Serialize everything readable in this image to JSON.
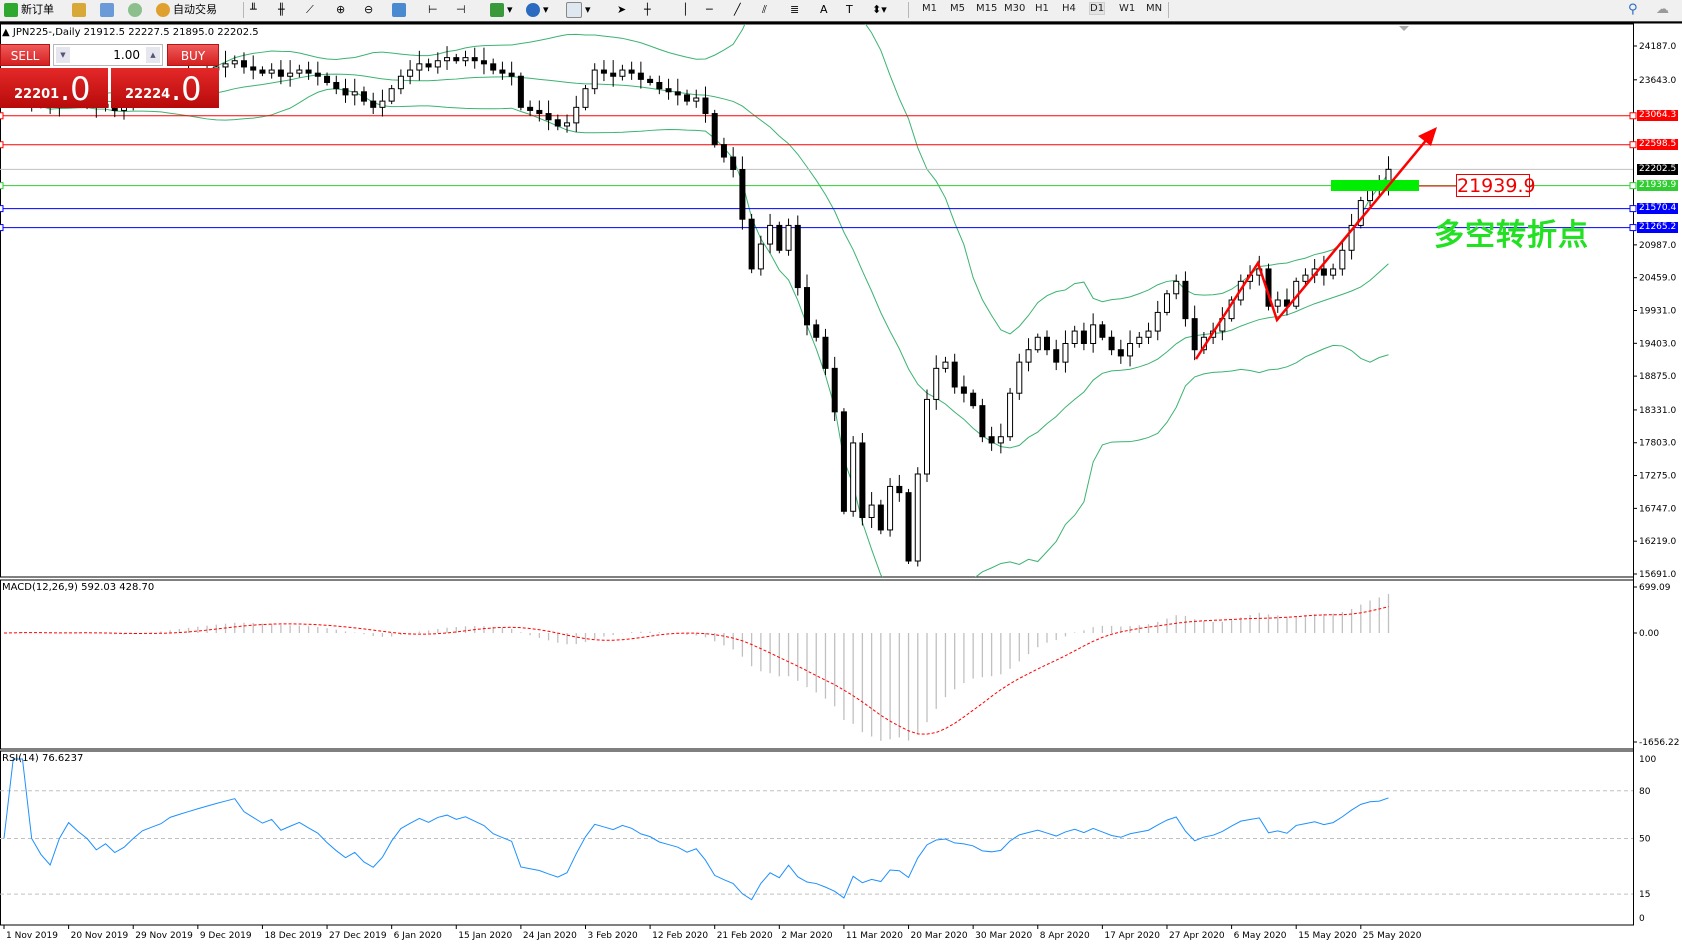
{
  "toolbar": {
    "new_order": "新订单",
    "auto_trading": "自动交易",
    "timeframes": [
      "M1",
      "M5",
      "M15",
      "M30",
      "H1",
      "H4",
      "D1",
      "W1",
      "MN"
    ],
    "active_timeframe": "D1",
    "icons": [
      "new-order-icon",
      "market-watch-icon",
      "navigator-icon",
      "signals-icon",
      "auto-trading-icon",
      "bar-chart-icon",
      "candlestick-icon",
      "line-chart-icon",
      "zoom-in-icon",
      "zoom-out-icon",
      "tile-windows-icon",
      "chart-shift-icon",
      "autoscroll-icon",
      "indicators-icon",
      "periods-icon",
      "templates-icon",
      "cursor-icon",
      "crosshair-icon",
      "vertical-line-icon",
      "horizontal-line-icon",
      "trendline-icon",
      "equidistant-channel-icon",
      "fibonacci-icon",
      "text-icon",
      "text-label-icon",
      "arrows-icon",
      "search-icon",
      "community-icon"
    ]
  },
  "chart": {
    "title": "▲ JPN225-,Daily  21912.5 22227.5 21895.0 22202.5",
    "macd_label": "MACD(12,26,9) 592.03 428.70",
    "rsi_label": "RSI(14) 76.6237",
    "annotation_text": "多空转折点",
    "annotation_level": "21939.9"
  },
  "one_click": {
    "sell": "SELL",
    "buy": "BUY",
    "lot": "1.00",
    "sell_price_small": "22201",
    "sell_price_big": ".0",
    "buy_price_small": "22224",
    "buy_price_big": ".0"
  },
  "colors": {
    "bull": "#ffffff",
    "bear": "#000000",
    "bands": "#3cb371",
    "macd_hist": "#c0c0c0",
    "macd_signal": "#ff0000",
    "rsi": "#1e90ff",
    "resistance": "#ff0000",
    "support": "#0000ff",
    "pivot": "#32cd32",
    "current": "#c0c0c0",
    "arrow": "#ff0000",
    "panel": "#d91a1a"
  },
  "chart_data": {
    "type": "candlestick",
    "symbol": "JPN225-",
    "timeframe": "Daily",
    "price_ticks": [
      "24187.0",
      "23643.0",
      "20987.0",
      "20459.0",
      "19931.0",
      "19403.0",
      "18875.0",
      "18331.0",
      "17803.0",
      "17275.0",
      "16747.0",
      "16219.0",
      "15691.0"
    ],
    "price_range": [
      15691.0,
      24187.0
    ],
    "levels": [
      {
        "value": 23064.3,
        "label": "23064.3",
        "kind": "resistance"
      },
      {
        "value": 22598.5,
        "label": "22598.5",
        "kind": "resistance"
      },
      {
        "value": 22202.5,
        "label": "22202.5",
        "kind": "current"
      },
      {
        "value": 21939.9,
        "label": "21939.9",
        "kind": "pivot"
      },
      {
        "value": 21570.4,
        "label": "21570.4",
        "kind": "support"
      },
      {
        "value": 21265.2,
        "label": "21265.2",
        "kind": "support"
      }
    ],
    "closes": [
      23300,
      23350,
      23400,
      23300,
      23250,
      23200,
      23300,
      23400,
      23350,
      23300,
      23200,
      23250,
      23150,
      23200,
      23300,
      23400,
      23450,
      23500,
      23600,
      23650,
      23700,
      23750,
      23800,
      23850,
      23900,
      23950,
      23850,
      23800,
      23750,
      23800,
      23700,
      23750,
      23800,
      23750,
      23700,
      23600,
      23500,
      23400,
      23450,
      23300,
      23200,
      23300,
      23500,
      23700,
      23800,
      23900,
      23850,
      23950,
      24000,
      23950,
      24000,
      23950,
      23900,
      23800,
      23750,
      23700,
      23200,
      23150,
      23100,
      23000,
      22900,
      22950,
      23200,
      23500,
      23800,
      23750,
      23700,
      23800,
      23750,
      23650,
      23600,
      23500,
      23450,
      23400,
      23300,
      23350,
      23100,
      22600,
      22400,
      22200,
      21400,
      20600,
      21000,
      21300,
      20900,
      21300,
      20300,
      19700,
      19500,
      19000,
      18300,
      16700,
      17800,
      16600,
      16800,
      16400,
      17100,
      17000,
      15900,
      17300,
      18500,
      19000,
      19100,
      18700,
      18600,
      18400,
      17900,
      17800,
      17900,
      18600,
      19100,
      19300,
      19500,
      19300,
      19100,
      19400,
      19600,
      19400,
      19700,
      19500,
      19300,
      19200,
      19400,
      19500,
      19600,
      19900,
      20200,
      20400,
      19800,
      19300,
      19500,
      19600,
      19800,
      20100,
      20400,
      20500,
      20600,
      20000,
      20100,
      20000,
      20400,
      20500,
      20600,
      20500,
      20600,
      20900,
      21300,
      21700,
      21900,
      21950,
      22202.5
    ],
    "date_labels": [
      "1 Nov 2019",
      "20 Nov 2019",
      "29 Nov 2019",
      "9 Dec 2019",
      "18 Dec 2019",
      "27 Dec 2019",
      "6 Jan 2020",
      "15 Jan 2020",
      "24 Jan 2020",
      "3 Feb 2020",
      "12 Feb 2020",
      "21 Feb 2020",
      "2 Mar 2020",
      "11 Mar 2020",
      "20 Mar 2020",
      "30 Mar 2020",
      "8 Apr 2020",
      "17 Apr 2020",
      "27 Apr 2020",
      "6 May 2020",
      "15 May 2020",
      "25 May 2020"
    ],
    "indicators": {
      "bollinger": {
        "period": 20,
        "deviation": 2
      },
      "macd": {
        "fast": 12,
        "slow": 26,
        "signal": 9,
        "ticks": [
          "699.09",
          "0.00",
          "-1656.22"
        ],
        "range": [
          -1656.22,
          699.09
        ]
      },
      "rsi": {
        "period": 14,
        "ticks": [
          "100",
          "80",
          "50",
          "15",
          "0"
        ],
        "levels": [
          80,
          50,
          15
        ]
      }
    }
  }
}
